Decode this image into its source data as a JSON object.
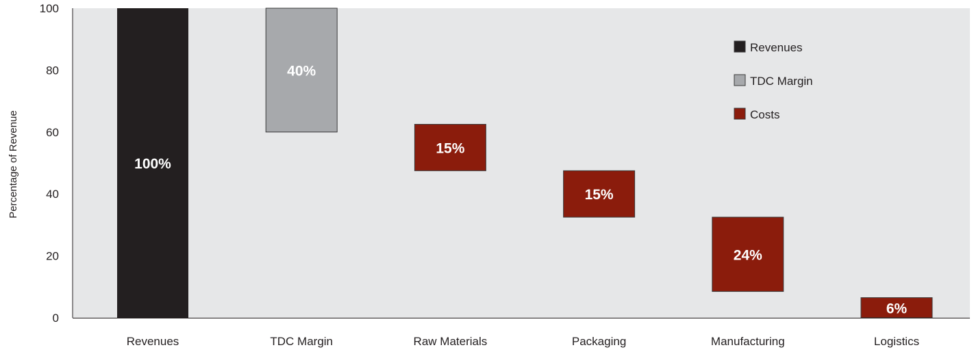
{
  "chart_data": {
    "type": "bar",
    "subtype": "waterfall",
    "title": "",
    "xlabel": "",
    "ylabel": "Percentage of Revenue",
    "ylim": [
      0,
      100
    ],
    "yticks": [
      "0",
      "20",
      "40",
      "60",
      "80",
      "100"
    ],
    "grid": false,
    "legend_position": "top-right",
    "categories": [
      "Revenues",
      "TDC Margin",
      "Raw Materials",
      "Packaging",
      "Manufacturing",
      "Logistics"
    ],
    "bars": [
      {
        "category": "Revenues",
        "bottom": 0,
        "top": 100,
        "value": 100,
        "label": "100%",
        "series": "Revenues"
      },
      {
        "category": "TDC Margin",
        "bottom": 60,
        "top": 100,
        "value": 40,
        "label": "40%",
        "series": "TDC Margin"
      },
      {
        "category": "Raw Materials",
        "bottom": 47.5,
        "top": 62.5,
        "value": 15,
        "label": "15%",
        "series": "Costs"
      },
      {
        "category": "Packaging",
        "bottom": 32.5,
        "top": 47.5,
        "value": 15,
        "label": "15%",
        "series": "Costs"
      },
      {
        "category": "Manufacturing",
        "bottom": 8.5,
        "top": 32.5,
        "value": 24,
        "label": "24%",
        "series": "Costs"
      },
      {
        "category": "Logistics",
        "bottom": 0,
        "top": 6.5,
        "value": 6,
        "label": "6%",
        "series": "Costs"
      }
    ],
    "legend": [
      {
        "name": "Revenues",
        "color": "#231f20"
      },
      {
        "name": "TDC Margin",
        "color": "#a7a9ac"
      },
      {
        "name": "Costs",
        "color": "#8b1c0c"
      }
    ],
    "colors": {
      "plot_background": "#e6e7e8",
      "Revenues": "#231f20",
      "TDC Margin": "#a7a9ac",
      "Costs": "#8b1c0c",
      "data_label": "#ffffff"
    }
  }
}
